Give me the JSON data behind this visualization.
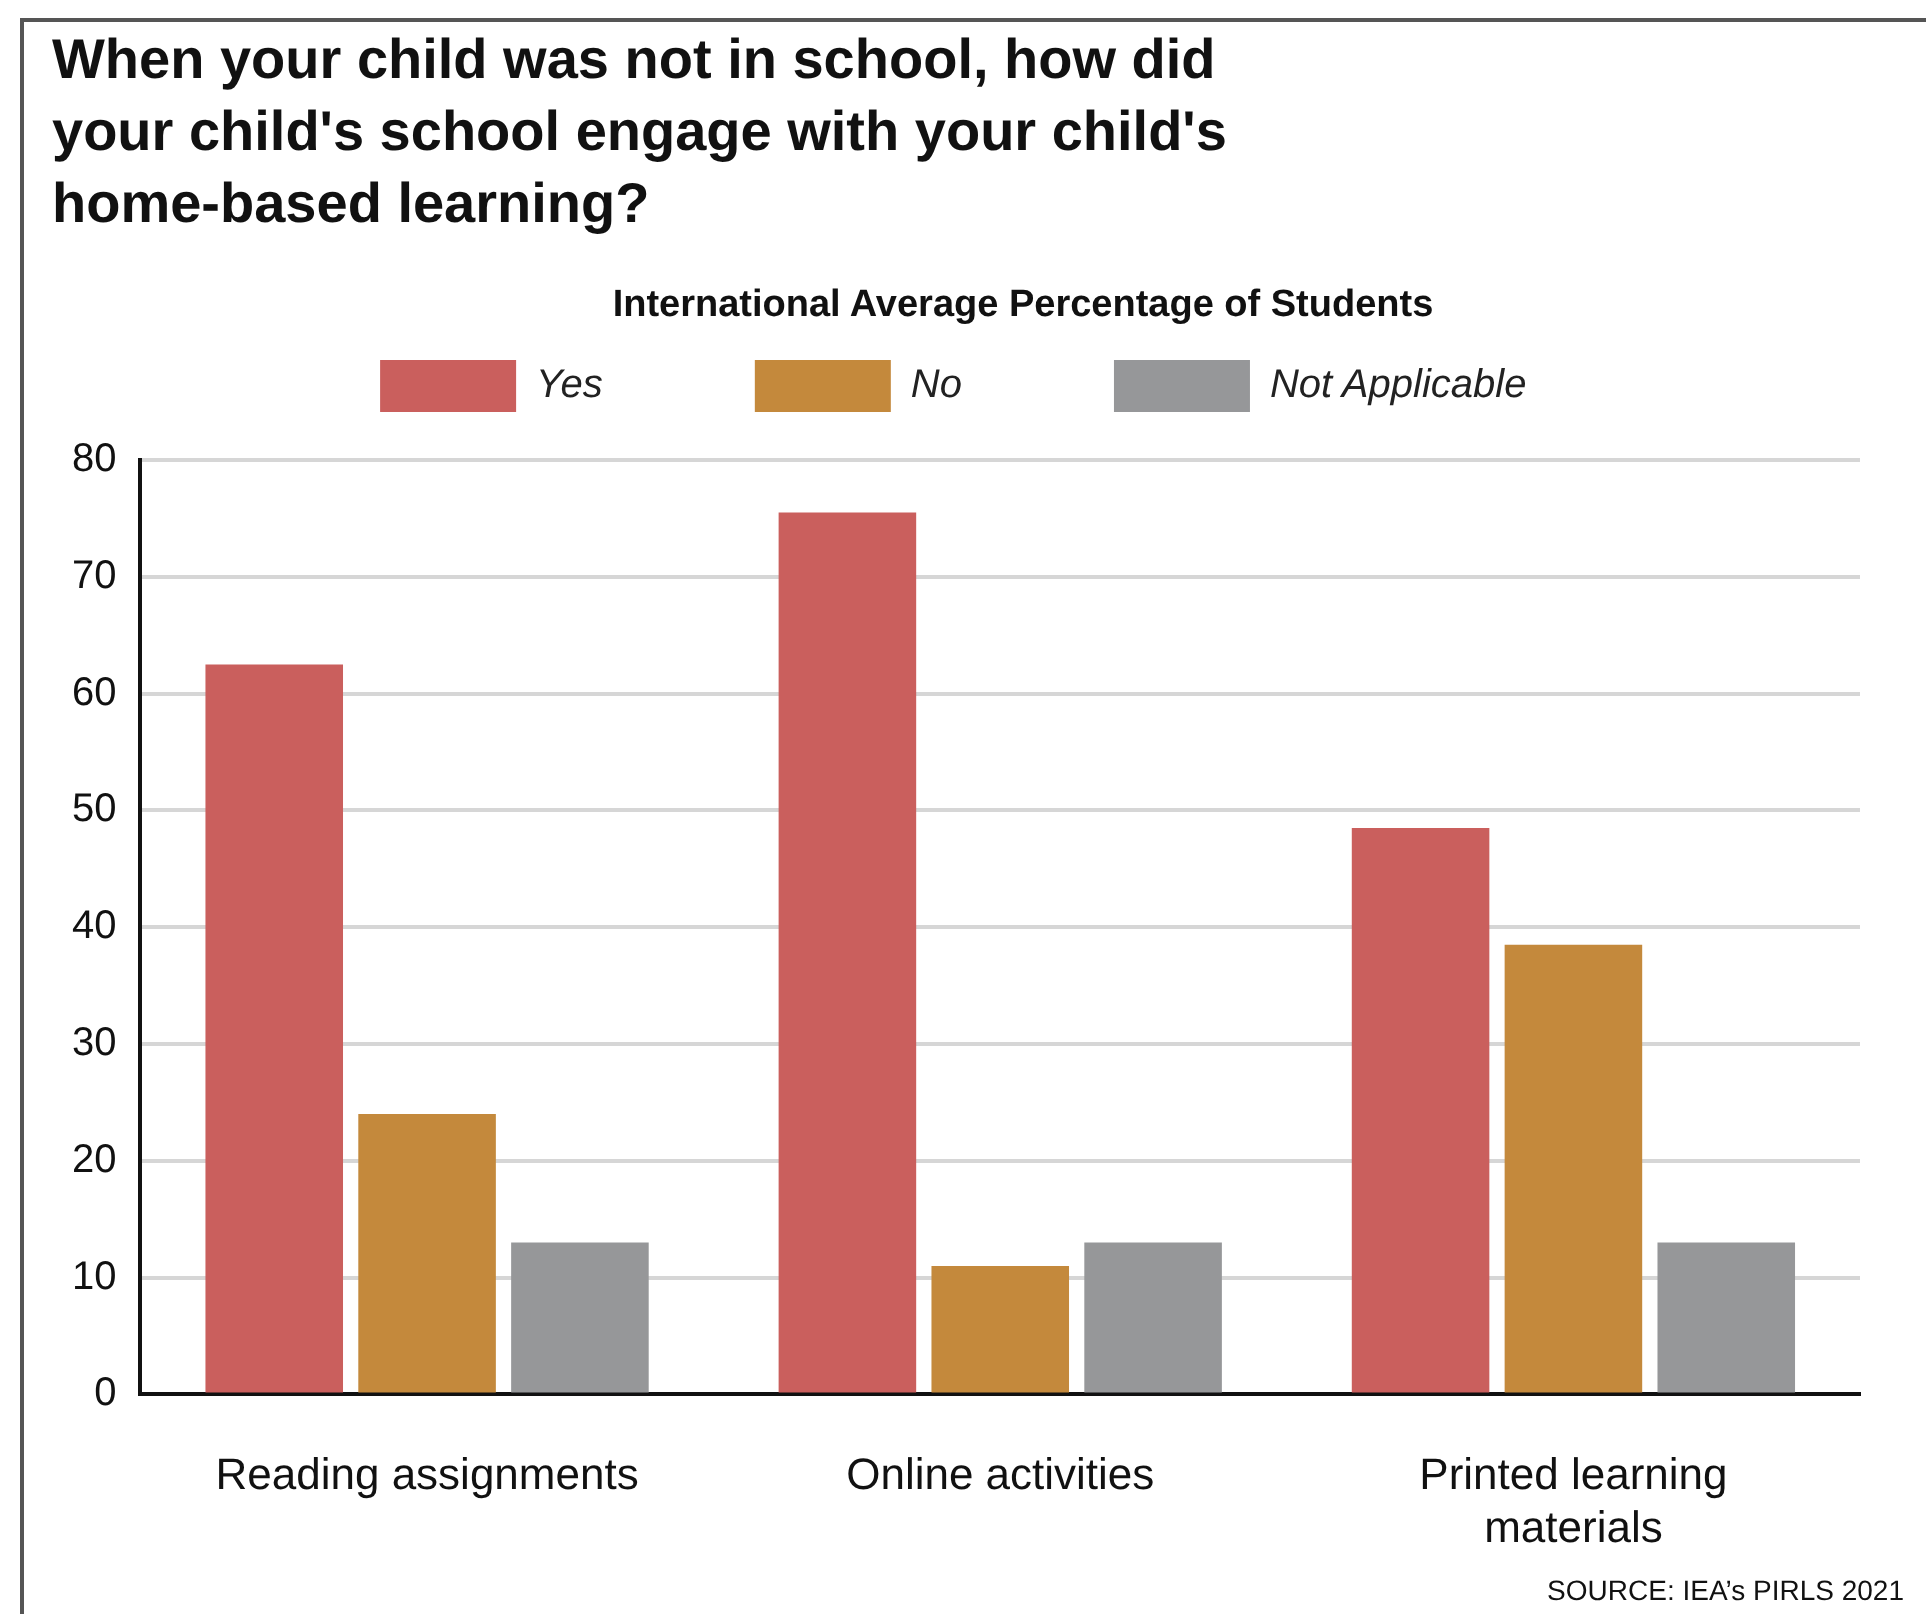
{
  "chart_data": {
    "type": "bar",
    "title": "When your child was not in school, how did your child's school engage with your child's home-based learning?",
    "subtitle": "International Average Percentage of Students",
    "categories": [
      "Reading assignments",
      "Online activities",
      "Printed learning materials"
    ],
    "series": [
      {
        "name": "Yes",
        "color": "#ca5f5d",
        "values": [
          62.5,
          75.5,
          48.5
        ]
      },
      {
        "name": "No",
        "color": "#c4893c",
        "values": [
          24,
          11,
          38.5
        ]
      },
      {
        "name": "Not Applicable",
        "color": "#969799",
        "values": [
          13,
          13,
          13
        ]
      }
    ],
    "ylim": [
      0,
      80
    ],
    "yticks": [
      0,
      10,
      20,
      30,
      40,
      50,
      60,
      70,
      80
    ],
    "grid": "y",
    "legend": "top",
    "annotations": [
      "SOURCE: IEA’s PIRLS 2021"
    ]
  }
}
